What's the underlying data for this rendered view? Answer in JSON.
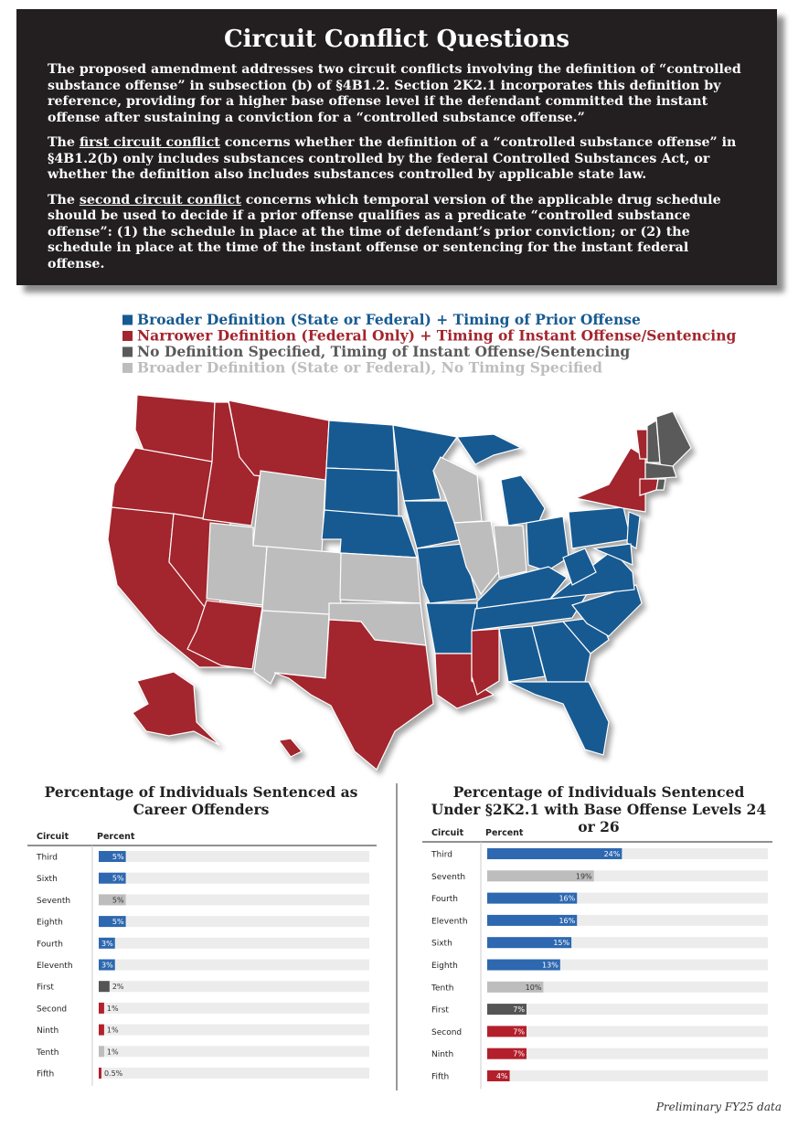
{
  "header": {
    "title": "Circuit Conflict Questions",
    "paragraphs": [
      {
        "before": "The proposed amendment addresses two circuit conflicts involving the definition of “controlled substance offense” in subsection (b) of §4B1.2. Section 2K2.1 incorporates this definition by reference, providing for a higher base offense level if the defendant committed the instant offense after sustaining a conviction for a “controlled substance offense.”"
      },
      {
        "before": "The ",
        "underlined": "first circuit conflict",
        "after": " concerns whether the definition of a “controlled substance offense” in §4B1.2(b) only includes substances controlled by the federal Controlled Substances Act, or whether the definition also includes substances controlled by applicable state law."
      },
      {
        "before": "The ",
        "underlined": "second circuit conflict",
        "after": " concerns which temporal version of the applicable drug schedule should be used to decide if a prior offense qualifies as a predicate “controlled substance offense”: (1) the schedule in place at the time of defendant’s prior conviction; or (2) the schedule in place at the time of the instant offense or sentencing for the instant federal offense."
      }
    ]
  },
  "legend": [
    {
      "label": "Broader Definition (State or Federal) + Timing of Prior Offense",
      "color": "#175a92"
    },
    {
      "label": "Narrower Definition (Federal Only) + Timing of Instant Offense/Sentencing",
      "color": "#a3252d"
    },
    {
      "label": "No Definition Specified, Timing of Instant Offense/Sentencing",
      "color": "#5a5a5a"
    },
    {
      "label": "Broader Definition (State or Federal), No Timing Specified",
      "color": "#bdbdbd"
    }
  ],
  "chart_data": [
    {
      "type": "bar",
      "title": "Percentage of Individuals Sentenced as Career Offenders",
      "columns": [
        "Circuit",
        "Percent"
      ],
      "categories": [
        "Third",
        "Sixth",
        "Seventh",
        "Eighth",
        "Fourth",
        "Eleventh",
        "First",
        "Second",
        "Ninth",
        "Tenth",
        "Fifth"
      ],
      "values": [
        5,
        5,
        5,
        5,
        3,
        3,
        2,
        1,
        1,
        1,
        0.5
      ],
      "value_labels": [
        "5%",
        "5%",
        "5%",
        "5%",
        "3%",
        "3%",
        "2%",
        "1%",
        "1%",
        "1%",
        "0.5%"
      ],
      "colors": [
        "#2d68b0",
        "#2d68b0",
        "#bdbdbd",
        "#2d68b0",
        "#2d68b0",
        "#2d68b0",
        "#555555",
        "#b3202c",
        "#b3202c",
        "#bdbdbd",
        "#b3202c"
      ],
      "xlim": [
        0,
        50
      ]
    },
    {
      "type": "bar",
      "title": "Percentage of Individuals Sentenced Under §2K2.1 with Base Offense Levels 24 or 26",
      "columns": [
        "Circuit",
        "Percent"
      ],
      "categories": [
        "Third",
        "Seventh",
        "Fourth",
        "Eleventh",
        "Sixth",
        "Eighth",
        "Tenth",
        "First",
        "Second",
        "Ninth",
        "Fifth"
      ],
      "values": [
        24,
        19,
        16,
        16,
        15,
        13,
        10,
        7,
        7,
        7,
        4
      ],
      "value_labels": [
        "24%",
        "19%",
        "16%",
        "16%",
        "15%",
        "13%",
        "10%",
        "7%",
        "7%",
        "7%",
        "4%"
      ],
      "colors": [
        "#2d68b0",
        "#bdbdbd",
        "#2d68b0",
        "#2d68b0",
        "#2d68b0",
        "#2d68b0",
        "#bdbdbd",
        "#555555",
        "#b3202c",
        "#b3202c",
        "#b3202c"
      ],
      "xlim": [
        0,
        50
      ]
    }
  ],
  "footnote": "Preliminary FY25 data"
}
